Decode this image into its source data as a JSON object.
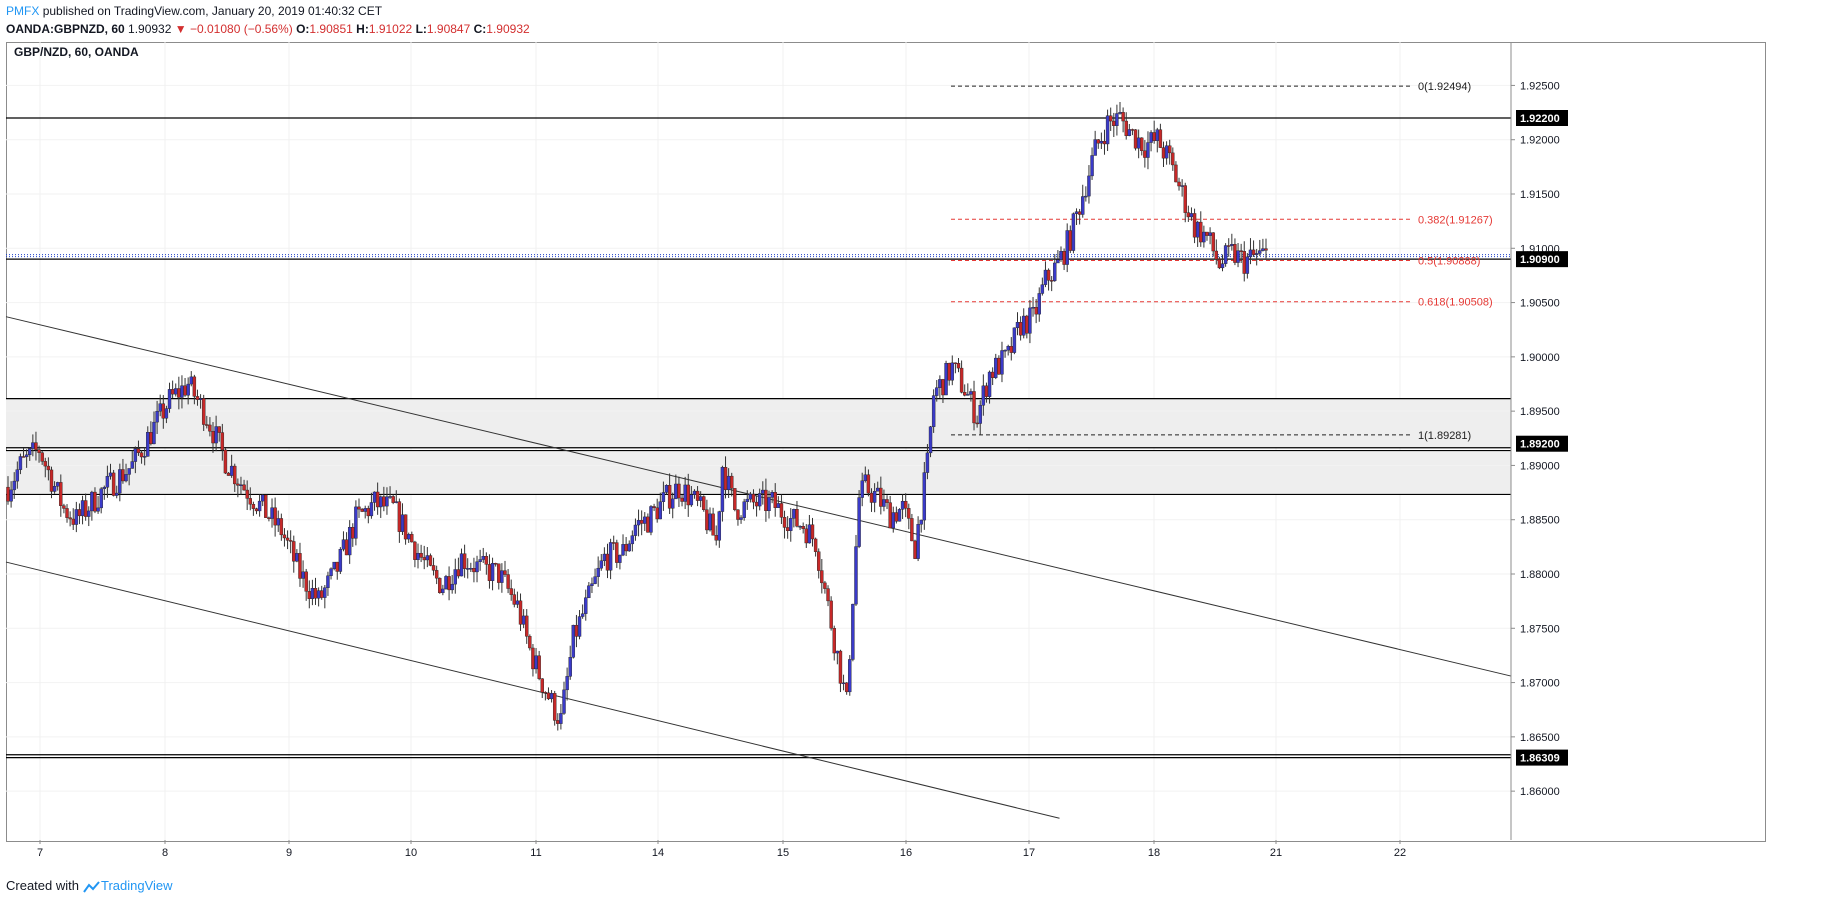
{
  "header": {
    "publisher": "PMFX",
    "published_text": "published on TradingView.com, January 20, 2019 01:40:32 CET",
    "symbol": "OANDA:GBPNZD, 60",
    "last": "1.90932",
    "change": "▼ −0.01080 (−0.56%)",
    "o_label": "O:",
    "o_value": "1.90851",
    "h_label": "H:",
    "h_value": "1.91022",
    "l_label": "L:",
    "l_value": "1.90847",
    "c_label": "C:",
    "c_value": "1.90932"
  },
  "footer": {
    "created_with": "Created with",
    "brand": "TradingView"
  },
  "colors": {
    "up": "#3a3ac8",
    "down": "#c62828",
    "fib": "#e53935",
    "level": "#000000",
    "zone": "#eeeeee",
    "price_line": "#1e40c8"
  },
  "chart_data": {
    "type": "candlestick",
    "title": "GBP/NZD, 60, OANDA",
    "ylim": [
      1.8555,
      1.929
    ],
    "y_ticks": [
      {
        "value": 1.925,
        "label": "1.92500"
      },
      {
        "value": 1.92,
        "label": "1.92000"
      },
      {
        "value": 1.915,
        "label": "1.91500"
      },
      {
        "value": 1.91,
        "label": "1.91000"
      },
      {
        "value": 1.905,
        "label": "1.90500"
      },
      {
        "value": 1.9,
        "label": "1.90000"
      },
      {
        "value": 1.895,
        "label": "1.89500"
      },
      {
        "value": 1.89,
        "label": "1.89000"
      },
      {
        "value": 1.885,
        "label": "1.88500"
      },
      {
        "value": 1.88,
        "label": "1.88000"
      },
      {
        "value": 1.875,
        "label": "1.87500"
      },
      {
        "value": 1.87,
        "label": "1.87000"
      },
      {
        "value": 1.865,
        "label": "1.86500"
      },
      {
        "value": 1.86,
        "label": "1.86000"
      }
    ],
    "x_ticks": [
      "7",
      "8",
      "9",
      "10",
      "11",
      "14",
      "15",
      "16",
      "17",
      "18",
      "21",
      "22"
    ],
    "price_labels": [
      {
        "value": 1.922,
        "label": "1.92200"
      },
      {
        "value": 1.909,
        "label": "1.90900"
      },
      {
        "value": 1.892,
        "label": "1.89200"
      },
      {
        "value": 1.86309,
        "label": "1.86309"
      }
    ],
    "horizontal_levels": [
      1.922,
      1.909,
      1.89615,
      1.89163,
      1.89137,
      1.88733,
      1.86335,
      1.86309
    ],
    "zones": [
      [
        1.89615,
        1.89163
      ],
      [
        1.89137,
        1.88733
      ]
    ],
    "current_price": 1.90932,
    "fibonacci": [
      {
        "ratio": "0",
        "value": 1.92494,
        "label": "0(1.92494)",
        "style": "black"
      },
      {
        "ratio": "0.382",
        "value": 1.91267,
        "label": "0.382(1.91267)",
        "style": "red"
      },
      {
        "ratio": "0.5",
        "value": 1.90888,
        "label": "0.5(1.90888)",
        "style": "red"
      },
      {
        "ratio": "0.618",
        "value": 1.90508,
        "label": "0.618(1.90508)",
        "style": "red"
      },
      {
        "ratio": "1",
        "value": 1.89281,
        "label": "1(1.89281)",
        "style": "black"
      }
    ],
    "channel_lines": [
      {
        "x_start": 0,
        "y_start": 1.9037,
        "x_end": 1,
        "y_end": 1.8706
      },
      {
        "x_start": 0,
        "y_start": 1.8811,
        "x_end": 0.7,
        "y_end": 1.8575
      }
    ],
    "anchors": [
      [
        0,
        1.888
      ],
      [
        4,
        1.89
      ],
      [
        10,
        1.8915
      ],
      [
        18,
        1.886
      ],
      [
        22,
        1.885
      ],
      [
        30,
        1.8875
      ],
      [
        40,
        1.89
      ],
      [
        52,
        1.896
      ],
      [
        58,
        1.8975
      ],
      [
        64,
        1.8945
      ],
      [
        70,
        1.8905
      ],
      [
        76,
        1.888
      ],
      [
        82,
        1.886
      ],
      [
        88,
        1.884
      ],
      [
        94,
        1.88
      ],
      [
        100,
        1.8775
      ],
      [
        106,
        1.8805
      ],
      [
        112,
        1.885
      ],
      [
        118,
        1.8865
      ],
      [
        124,
        1.886
      ],
      [
        130,
        1.883
      ],
      [
        136,
        1.88
      ],
      [
        140,
        1.879
      ],
      [
        146,
        1.8815
      ],
      [
        152,
        1.8805
      ],
      [
        158,
        1.88
      ],
      [
        164,
        1.877
      ],
      [
        168,
        1.873
      ],
      [
        172,
        1.87
      ],
      [
        176,
        1.8675
      ],
      [
        178,
        1.8665
      ],
      [
        182,
        1.874
      ],
      [
        186,
        1.877
      ],
      [
        192,
        1.8815
      ],
      [
        198,
        1.882
      ],
      [
        202,
        1.8845
      ],
      [
        206,
        1.885
      ],
      [
        212,
        1.887
      ],
      [
        216,
        1.888
      ],
      [
        220,
        1.887
      ],
      [
        224,
        1.8855
      ],
      [
        228,
        1.883
      ],
      [
        230,
        1.89
      ],
      [
        234,
        1.886
      ],
      [
        240,
        1.8865
      ],
      [
        246,
        1.8865
      ],
      [
        252,
        1.885
      ],
      [
        256,
        1.8845
      ],
      [
        260,
        1.883
      ],
      [
        262,
        1.88
      ],
      [
        266,
        1.874
      ],
      [
        270,
        1.868
      ],
      [
        272,
        1.878
      ],
      [
        274,
        1.887
      ],
      [
        276,
        1.888
      ],
      [
        280,
        1.887
      ],
      [
        284,
        1.8855
      ],
      [
        288,
        1.886
      ],
      [
        292,
        1.8825
      ],
      [
        296,
        1.89
      ],
      [
        298,
        1.8965
      ],
      [
        304,
        1.899
      ],
      [
        308,
        1.897
      ],
      [
        312,
        1.8945
      ],
      [
        316,
        1.8985
      ],
      [
        322,
        1.9
      ],
      [
        326,
        1.903
      ],
      [
        330,
        1.9035
      ],
      [
        334,
        1.907
      ],
      [
        338,
        1.9085
      ],
      [
        342,
        1.911
      ],
      [
        346,
        1.915
      ],
      [
        350,
        1.919
      ],
      [
        354,
        1.9215
      ],
      [
        358,
        1.922
      ],
      [
        362,
        1.9205
      ],
      [
        366,
        1.9195
      ],
      [
        370,
        1.92
      ],
      [
        374,
        1.918
      ],
      [
        378,
        1.915
      ],
      [
        382,
        1.912
      ],
      [
        386,
        1.911
      ],
      [
        390,
        1.9085
      ],
      [
        394,
        1.9095
      ],
      [
        398,
        1.9088
      ],
      [
        402,
        1.9093
      ]
    ]
  }
}
